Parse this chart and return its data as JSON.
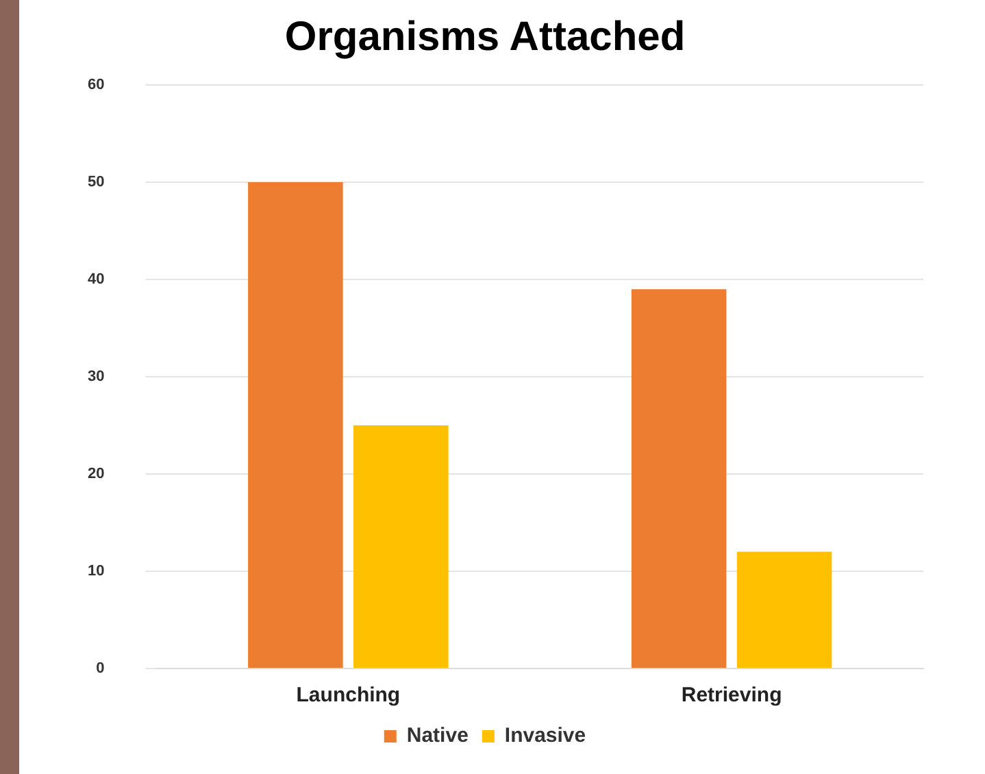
{
  "chart_data": {
    "type": "bar",
    "title": "Organisms Attached",
    "categories": [
      "Launching",
      "Retrieving"
    ],
    "series": [
      {
        "name": "Native",
        "color": "#ed7d31",
        "values": [
          50,
          39
        ]
      },
      {
        "name": "Invasive",
        "color": "#ffc000",
        "values": [
          25,
          12
        ]
      }
    ],
    "ylim": [
      0,
      60
    ],
    "yticks": [
      0,
      10,
      20,
      30,
      40,
      50,
      60
    ],
    "grid": "y",
    "legend": "bottom"
  }
}
